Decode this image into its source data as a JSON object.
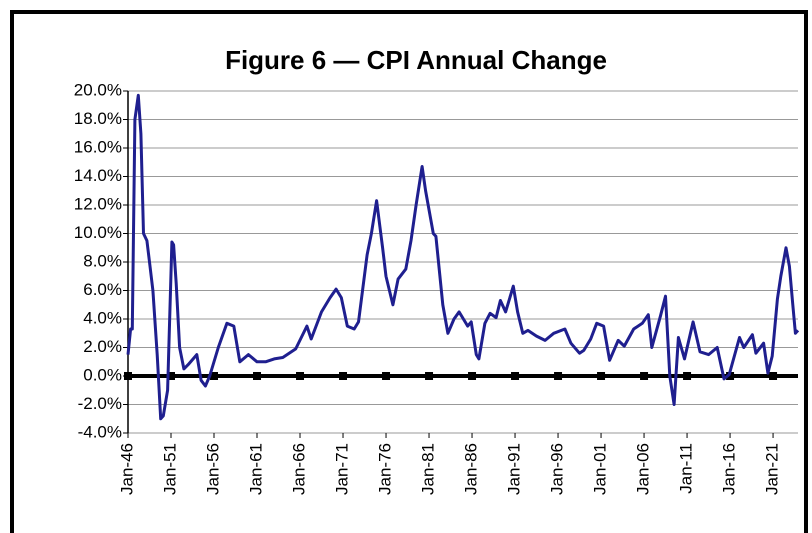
{
  "chart_data": {
    "type": "line",
    "title": "Figure 6 — CPI Annual Change",
    "xlim": [
      1946,
      2023.9
    ],
    "xticks": [
      {
        "value": 1946,
        "label": "Jan-46"
      },
      {
        "value": 1951,
        "label": "Jan-51"
      },
      {
        "value": 1956,
        "label": "Jan-56"
      },
      {
        "value": 1961,
        "label": "Jan-61"
      },
      {
        "value": 1966,
        "label": "Jan-66"
      },
      {
        "value": 1971,
        "label": "Jan-71"
      },
      {
        "value": 1976,
        "label": "Jan-76"
      },
      {
        "value": 1981,
        "label": "Jan-81"
      },
      {
        "value": 1986,
        "label": "Jan-86"
      },
      {
        "value": 1991,
        "label": "Jan-91"
      },
      {
        "value": 1996,
        "label": "Jan-96"
      },
      {
        "value": 2001,
        "label": "Jan-01"
      },
      {
        "value": 2006,
        "label": "Jan-06"
      },
      {
        "value": 2011,
        "label": "Jan-11"
      },
      {
        "value": 2016,
        "label": "Jan-16"
      },
      {
        "value": 2021,
        "label": "Jan-21"
      }
    ],
    "ylim": [
      -4,
      20
    ],
    "yticks": [
      {
        "value": -4,
        "label": "-4.0%"
      },
      {
        "value": -2,
        "label": "-2.0%"
      },
      {
        "value": 0,
        "label": "0.0%"
      },
      {
        "value": 2,
        "label": "2.0%"
      },
      {
        "value": 4,
        "label": "4.0%"
      },
      {
        "value": 6,
        "label": "6.0%"
      },
      {
        "value": 8,
        "label": "8.0%"
      },
      {
        "value": 10,
        "label": "10.0%"
      },
      {
        "value": 12,
        "label": "12.0%"
      },
      {
        "value": 14,
        "label": "14.0%"
      },
      {
        "value": 16,
        "label": "16.0%"
      },
      {
        "value": 18,
        "label": "18.0%"
      },
      {
        "value": 20,
        "label": "20.0%"
      }
    ],
    "grid": true,
    "x": [
      1946.0,
      1946.3,
      1946.5,
      1946.8,
      1947.2,
      1947.5,
      1947.8,
      1948.2,
      1948.5,
      1948.9,
      1949.4,
      1949.8,
      1950.1,
      1950.6,
      1951.1,
      1951.3,
      1951.6,
      1952.0,
      1952.5,
      1953.0,
      1954.0,
      1954.5,
      1955.0,
      1955.5,
      1956.5,
      1957.5,
      1958.3,
      1959.0,
      1960.0,
      1961.0,
      1962.0,
      1963.0,
      1964.0,
      1965.5,
      1966.8,
      1967.3,
      1968.5,
      1969.5,
      1970.2,
      1970.8,
      1971.5,
      1972.3,
      1972.8,
      1973.8,
      1974.3,
      1974.9,
      1975.6,
      1976.0,
      1976.8,
      1977.4,
      1978.3,
      1978.9,
      1979.5,
      1980.2,
      1980.6,
      1981.5,
      1981.8,
      1982.6,
      1983.2,
      1983.9,
      1984.5,
      1985.5,
      1985.9,
      1986.5,
      1986.8,
      1987.5,
      1988.1,
      1988.8,
      1989.3,
      1989.9,
      1990.8,
      1991.3,
      1991.9,
      1992.5,
      1993.5,
      1994.5,
      1995.5,
      1996.8,
      1997.5,
      1998.5,
      1999.0,
      1999.8,
      2000.5,
      2001.3,
      2002.0,
      2003.0,
      2003.7,
      2004.8,
      2005.8,
      2006.5,
      2006.9,
      2007.9,
      2008.5,
      2009.0,
      2009.5,
      2010.0,
      2010.7,
      2011.7,
      2012.5,
      2013.5,
      2014.5,
      2015.3,
      2015.9,
      2017.1,
      2017.6,
      2018.6,
      2019.0,
      2019.9,
      2020.4,
      2020.9,
      2021.5,
      2021.9,
      2022.5,
      2022.9,
      2023.3,
      2023.6,
      2023.9
    ],
    "series": [
      {
        "color": "#1f1f8f",
        "values": [
          1.5,
          3.3,
          3.3,
          18,
          19.7,
          17,
          10,
          9.5,
          8,
          6,
          1.5,
          -3,
          -2.8,
          -1,
          9.4,
          9.2,
          6.5,
          2,
          0.5,
          0.8,
          1.5,
          -0.3,
          -0.7,
          0,
          2,
          3.7,
          3.5,
          1,
          1.5,
          1,
          1,
          1.2,
          1.3,
          1.9,
          3.5,
          2.6,
          4.5,
          5.5,
          6.1,
          5.5,
          3.5,
          3.3,
          3.8,
          8.5,
          10,
          12.3,
          9,
          7,
          5,
          6.8,
          7.5,
          9.5,
          12,
          14.7,
          13,
          10,
          9.8,
          5,
          3,
          4,
          4.5,
          3.5,
          3.8,
          1.5,
          1.2,
          3.7,
          4.4,
          4.1,
          5.3,
          4.5,
          6.3,
          4.5,
          3,
          3.2,
          2.8,
          2.5,
          3,
          3.3,
          2.3,
          1.6,
          1.8,
          2.6,
          3.7,
          3.5,
          1.1,
          2.5,
          2.1,
          3.3,
          3.7,
          4.3,
          2,
          4.2,
          5.6,
          0,
          -2,
          2.7,
          1.2,
          3.8,
          1.7,
          1.5,
          2,
          -0.2,
          0.1,
          2.7,
          2,
          2.9,
          1.6,
          2.3,
          0.2,
          1.4,
          5.4,
          7,
          9,
          7.7,
          5,
          3,
          3.2
        ]
      }
    ]
  }
}
